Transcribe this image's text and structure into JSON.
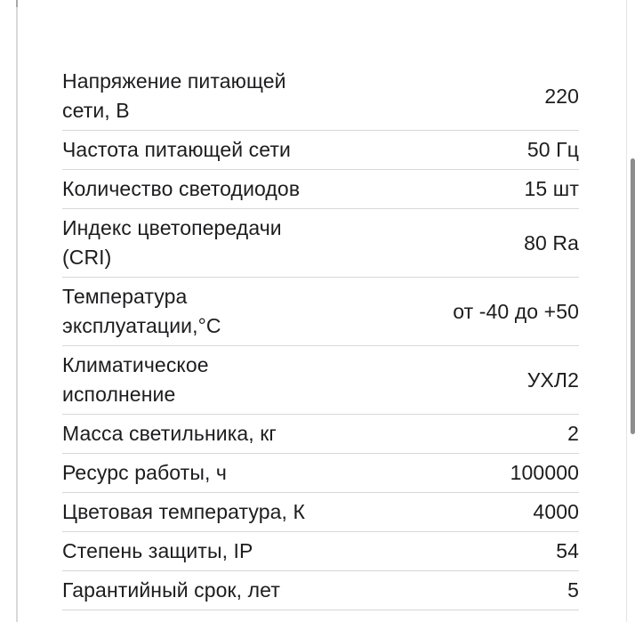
{
  "theme": {
    "text_color": "#1d1d1f",
    "separator_color": "#d8d8d8",
    "border_color": "#d9d9d9",
    "border_cap_color": "#a8a8a8",
    "right_border_color": "#e4e4e4",
    "scrollbar_color": "#8d8d8d",
    "background": "#ffffff"
  },
  "specs": {
    "rows": [
      {
        "label": "Напряжение питающей\nсети, В",
        "value": "220"
      },
      {
        "label": "Частота питающей сети",
        "value": "50 Гц"
      },
      {
        "label": "Количество светодиодов",
        "value": "15 шт"
      },
      {
        "label": "Индекс цветопередачи\n(CRI)",
        "value": "80 Ra"
      },
      {
        "label": "Температура\nэксплуатации,°С",
        "value": "от -40 до +50"
      },
      {
        "label": "Климатическое\nисполнение",
        "value": "УХЛ2"
      },
      {
        "label": "Масса светильника, кг",
        "value": "2"
      },
      {
        "label": "Ресурс работы, ч",
        "value": "100000"
      },
      {
        "label": "Цветовая температура, К",
        "value": "4000"
      },
      {
        "label": "Степень защиты, IP",
        "value": "54"
      },
      {
        "label": "Гарантийный срок, лет",
        "value": "5"
      }
    ]
  }
}
